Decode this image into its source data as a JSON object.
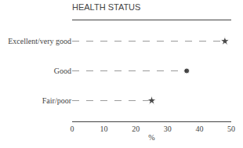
{
  "chart_data": {
    "type": "dot",
    "title": "HEALTH STATUS",
    "categories": [
      "Fair/poor",
      "Good",
      "Excellent/very good"
    ],
    "values": [
      25,
      36,
      48
    ],
    "marker": [
      "star",
      "circle",
      "star"
    ],
    "color": "#000000",
    "line_style": "dashed",
    "xlabel": "%",
    "xlim": [
      0,
      50
    ],
    "xticks": [
      0,
      10,
      20,
      30,
      40,
      50
    ],
    "grid": false
  }
}
